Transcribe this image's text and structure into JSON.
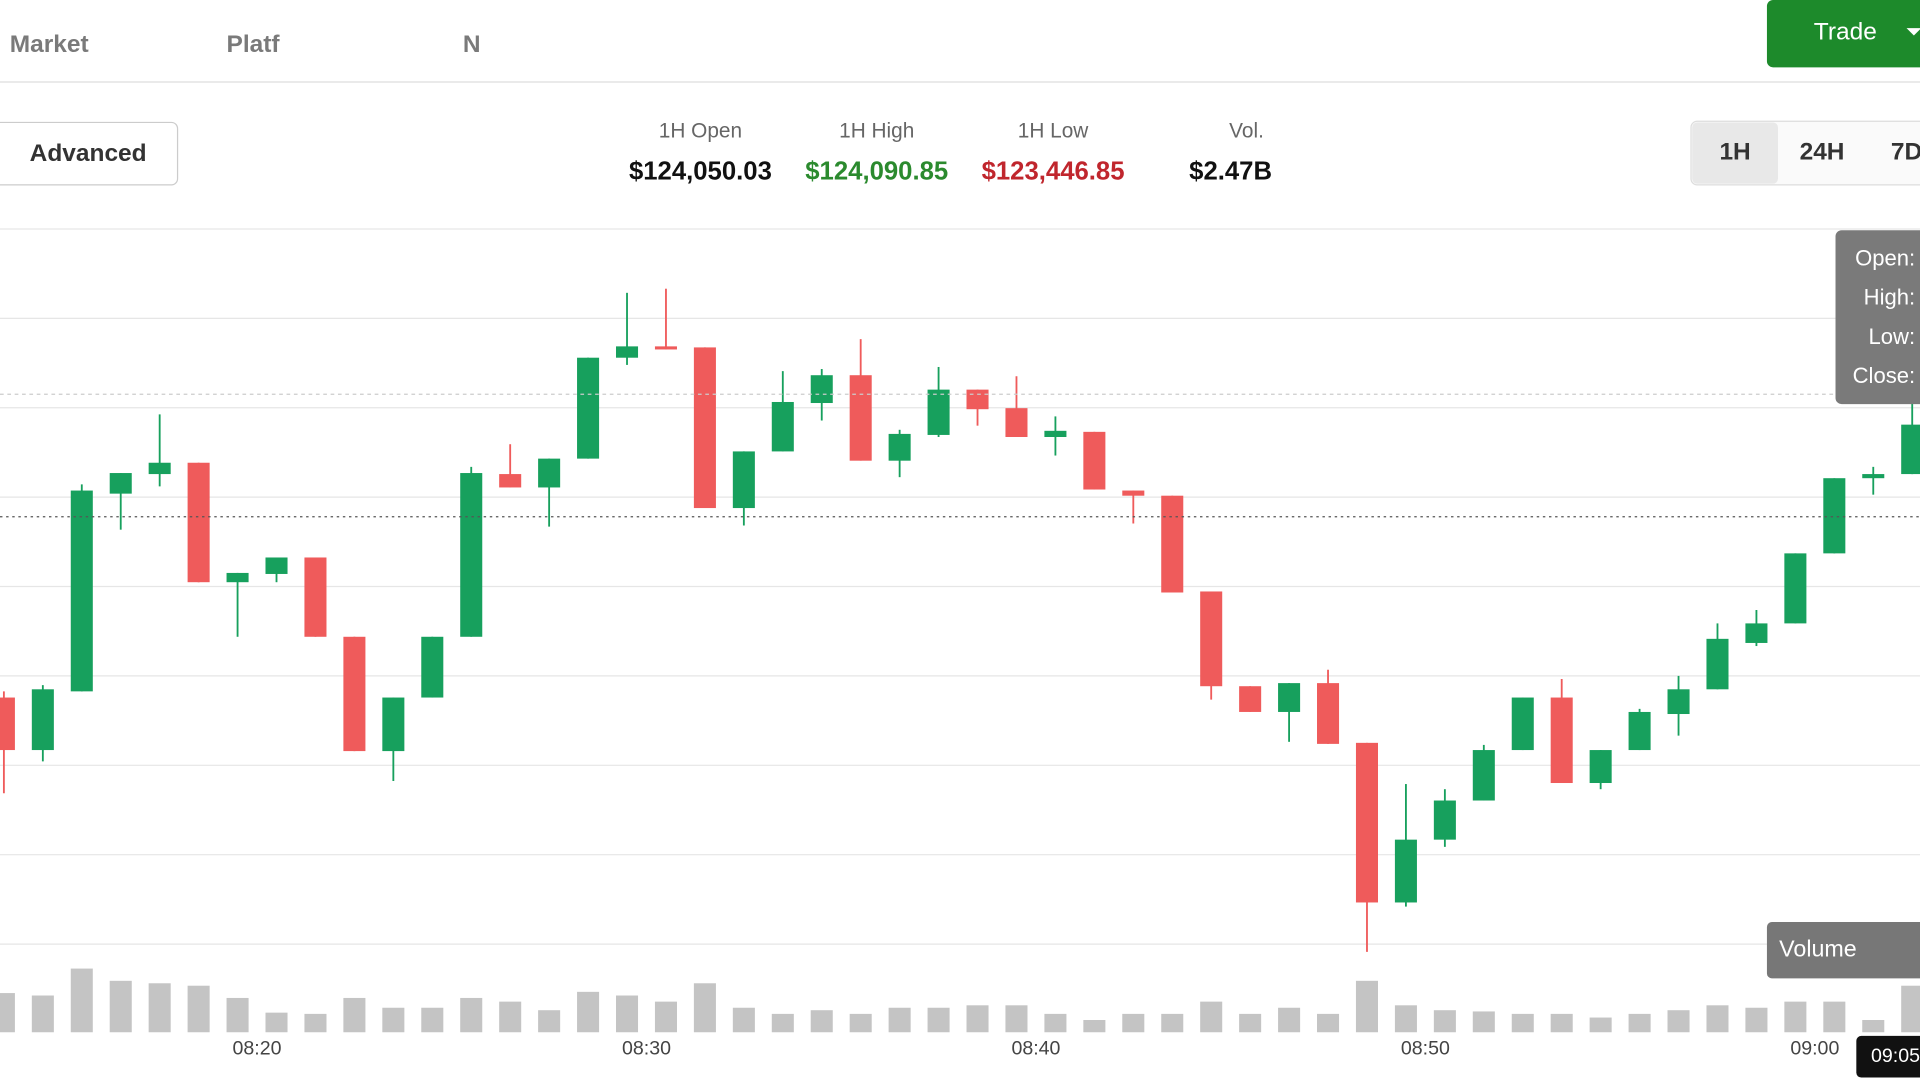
{
  "nav": {
    "items": [
      "Market",
      "Platf",
      "N"
    ],
    "trade_button": "Trade"
  },
  "toolbar": {
    "mode_button": "Advanced",
    "stats": [
      {
        "label": "1H Open",
        "value": "$124,050.03"
      },
      {
        "label": "1H High",
        "value": "$124,090.85"
      },
      {
        "label": "1H Low",
        "value": "$123,446.85"
      },
      {
        "label": "Vol.",
        "value": "$2.47B"
      }
    ],
    "timeframes": [
      "1H",
      "24H",
      "7D"
    ]
  },
  "tooltip": {
    "labels": [
      "Open:",
      "High:",
      "Low:",
      "Close:"
    ]
  },
  "volume_label": "Volume",
  "time_badge": "09:05",
  "chart_data": {
    "type": "candlestick",
    "up_color": "#17a05d",
    "down_color": "#ef5b5b",
    "volume_color": "#c4c4c4",
    "x": [
      493,
      494,
      495,
      496,
      497,
      498,
      499,
      500,
      501,
      502,
      503,
      504,
      505,
      506,
      507,
      508,
      509,
      510,
      511,
      512,
      513,
      514,
      515,
      516,
      517,
      518,
      519,
      520,
      521,
      522,
      523,
      524,
      525,
      526,
      527,
      528,
      529,
      530,
      531,
      532,
      533,
      534,
      535,
      536,
      537,
      538,
      539,
      540,
      541,
      542
    ],
    "open": [
      123694,
      123643,
      123700,
      123892,
      123911,
      123922,
      123806,
      123814,
      123830,
      123753,
      123642,
      123694,
      123753,
      123911,
      123898,
      123926,
      124024,
      124035,
      124034,
      123878,
      123933,
      123980,
      124007,
      123924,
      123949,
      123993,
      123975,
      123947,
      123952,
      123895,
      123890,
      123797,
      123705,
      123680,
      123708,
      123650,
      123495,
      123556,
      123594,
      123643,
      123694,
      123611,
      123643,
      123678,
      123702,
      123747,
      123766,
      123834,
      123907,
      123911
    ],
    "high": [
      123700,
      123706,
      123901,
      123912,
      123969,
      123922,
      123815,
      123830,
      123830,
      123753,
      123694,
      123753,
      123918,
      123940,
      123926,
      124024,
      124087,
      124091,
      124034,
      123933,
      124011,
      124013,
      124042,
      123954,
      124015,
      123993,
      124006,
      123967,
      123952,
      123895,
      123890,
      123797,
      123705,
      123708,
      123721,
      123650,
      123610,
      123605,
      123648,
      123694,
      123712,
      123643,
      123683,
      123715,
      123766,
      123779,
      123834,
      123907,
      123918,
      124021
    ],
    "low": [
      123601,
      123632,
      123700,
      123857,
      123899,
      123806,
      123753,
      123806,
      123753,
      123642,
      123613,
      123694,
      123753,
      123898,
      123860,
      123926,
      124017,
      124032,
      123878,
      123861,
      123933,
      123963,
      123924,
      123908,
      123947,
      123958,
      123947,
      123929,
      123896,
      123863,
      123796,
      123692,
      123680,
      123651,
      123649,
      123447,
      123491,
      123549,
      123594,
      123643,
      123611,
      123605,
      123643,
      123657,
      123702,
      123744,
      123766,
      123834,
      123891,
      123911
    ],
    "close": [
      123643,
      123702,
      123895,
      123912,
      123922,
      123806,
      123815,
      123830,
      123753,
      123642,
      123694,
      123753,
      123912,
      123898,
      123926,
      124024,
      124035,
      124032,
      123878,
      123933,
      123981,
      124007,
      123924,
      123950,
      123993,
      123974,
      123947,
      123953,
      123896,
      123890,
      123796,
      123705,
      123680,
      123708,
      123649,
      123495,
      123556,
      123594,
      123643,
      123694,
      123611,
      123643,
      123680,
      123702,
      123751,
      123766,
      123834,
      123907,
      123911,
      123959
    ],
    "volume": [
      32,
      30,
      52,
      42,
      40,
      38,
      28,
      16,
      15,
      28,
      20,
      20,
      28,
      25,
      18,
      33,
      30,
      25,
      40,
      20,
      15,
      18,
      15,
      20,
      20,
      22,
      22,
      15,
      10,
      15,
      15,
      25,
      15,
      20,
      15,
      42,
      22,
      18,
      17,
      15,
      15,
      12,
      15,
      18,
      22,
      20,
      25,
      25,
      10,
      38
    ],
    "xlim": [
      493.4,
      542.7
    ],
    "ylim": [
      123432,
      124149
    ],
    "volume_ylim": [
      0,
      100
    ],
    "xticks": [
      {
        "value": 500,
        "label": "08:20"
      },
      {
        "value": 510,
        "label": "08:30"
      },
      {
        "value": 520,
        "label": "08:40"
      },
      {
        "value": 530,
        "label": "08:50"
      },
      {
        "value": 540,
        "label": "09:00"
      }
    ]
  }
}
